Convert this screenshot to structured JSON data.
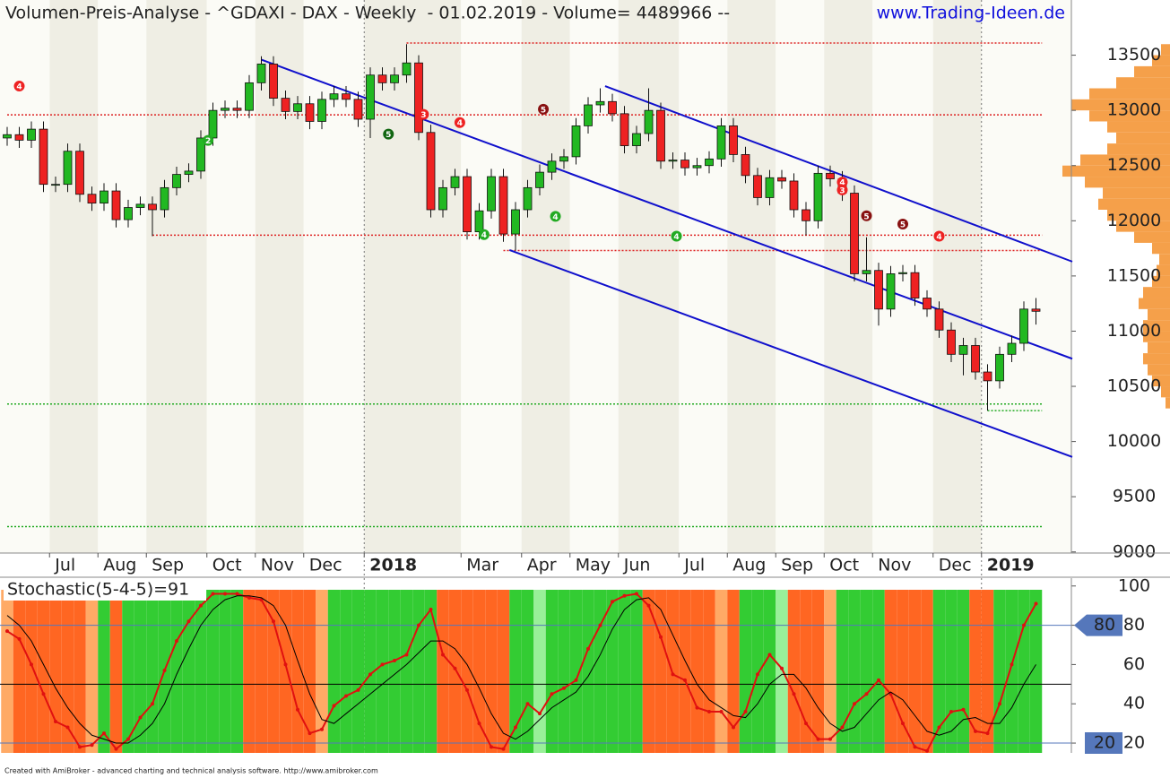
{
  "chart_data": [
    {
      "type": "candlestick",
      "title": "Volumen-Preis-Analyse - ^GDAXI - DAX - Weekly  - 01.02.2019 - Volume= 4489966 --",
      "subtitle": "www.Trading-Ideen.de",
      "open": [
        12750,
        12780,
        12730,
        12830,
        12330,
        12330,
        12630,
        12240,
        12160,
        12270,
        12010,
        12120,
        12150,
        12100,
        12300,
        12420,
        12450,
        12750,
        13000,
        13020,
        13000,
        13250,
        13420,
        13110,
        12990,
        13060,
        12900,
        13100,
        13150,
        13100,
        12920,
        13320,
        13250,
        13320,
        13430,
        12800,
        12100,
        12300,
        12400,
        11900,
        12090,
        12400,
        11880,
        12100,
        12300,
        12440,
        12540,
        12580,
        12860,
        13050,
        13080,
        12970,
        12680,
        12790,
        13000,
        12540,
        12550,
        12480,
        12500,
        12560,
        12860,
        12600,
        12410,
        12210,
        12390,
        12360,
        12100,
        12000,
        12430,
        12380,
        12250,
        11520,
        11550,
        11200,
        11520,
        11530,
        11300,
        11200,
        11010,
        10790,
        10870,
        10630,
        10550,
        10790,
        10890,
        11200
      ],
      "high": [
        12850,
        12850,
        12900,
        12900,
        12400,
        12700,
        12700,
        12310,
        12340,
        12340,
        12190,
        12220,
        12220,
        12370,
        12490,
        12520,
        12820,
        13070,
        13090,
        13090,
        13320,
        13490,
        13490,
        13180,
        13130,
        13130,
        13170,
        13220,
        13220,
        13170,
        13390,
        13390,
        13390,
        13600,
        13500,
        12870,
        12370,
        12470,
        12470,
        12160,
        12470,
        12470,
        12170,
        12370,
        12510,
        12610,
        12650,
        12930,
        13120,
        13200,
        13150,
        13040,
        12860,
        13200,
        13070,
        12620,
        12620,
        12570,
        12630,
        12930,
        12930,
        12670,
        12480,
        12460,
        12460,
        12430,
        12170,
        12500,
        12500,
        12450,
        12320,
        11850,
        11620,
        11590,
        11600,
        11600,
        11370,
        11270,
        11080,
        10940,
        10940,
        10700,
        10860,
        10960,
        11270,
        11300
      ],
      "low": [
        12680,
        12660,
        12660,
        12260,
        12260,
        12260,
        12170,
        12090,
        12090,
        11940,
        11940,
        12050,
        11860,
        12030,
        12230,
        12350,
        12380,
        12680,
        12930,
        12930,
        12930,
        13180,
        13040,
        12920,
        12920,
        12830,
        12830,
        13030,
        13030,
        12850,
        12750,
        13180,
        13180,
        13250,
        12730,
        12030,
        12030,
        12230,
        11830,
        11830,
        12020,
        11810,
        11730,
        12030,
        12230,
        12370,
        12470,
        12510,
        12790,
        12980,
        12900,
        12610,
        12610,
        12720,
        12470,
        12470,
        12410,
        12410,
        12430,
        12490,
        12530,
        12340,
        12140,
        12140,
        12290,
        12030,
        11870,
        11930,
        12310,
        12180,
        11450,
        11450,
        11050,
        11130,
        11450,
        11230,
        11130,
        10940,
        10720,
        10600,
        10560,
        10280,
        10480,
        10720,
        10820,
        11060
      ],
      "close": [
        12780,
        12730,
        12830,
        12330,
        12330,
        12630,
        12240,
        12160,
        12270,
        12010,
        12120,
        12150,
        12100,
        12300,
        12420,
        12450,
        12750,
        13000,
        13020,
        13000,
        13250,
        13420,
        13110,
        12990,
        13060,
        12900,
        13100,
        13150,
        13100,
        12920,
        13320,
        13250,
        13320,
        13430,
        12800,
        12100,
        12300,
        12400,
        11900,
        12090,
        12400,
        11880,
        12100,
        12300,
        12440,
        12540,
        12580,
        12860,
        13050,
        13080,
        12970,
        12680,
        12790,
        13000,
        12540,
        12550,
        12480,
        12500,
        12560,
        12860,
        12600,
        12410,
        12210,
        12390,
        12360,
        12100,
        12000,
        12430,
        12380,
        12250,
        11520,
        11550,
        11200,
        11520,
        11530,
        11300,
        11200,
        11010,
        10790,
        10870,
        10630,
        10550,
        10790,
        10890,
        11200,
        11180
      ],
      "up_color": "#22b822",
      "down_color": "#ee2222",
      "ylim": [
        8990,
        14000
      ],
      "yticks": [
        9000,
        9500,
        10000,
        10500,
        11000,
        11500,
        12000,
        12500,
        13000,
        13500
      ],
      "xlabels": [
        {
          "index": 4,
          "label": "Jul"
        },
        {
          "index": 8,
          "label": "Aug"
        },
        {
          "index": 12,
          "label": "Sep"
        },
        {
          "index": 17,
          "label": "Oct"
        },
        {
          "index": 21,
          "label": "Nov"
        },
        {
          "index": 25,
          "label": "Dec"
        },
        {
          "index": 30,
          "label": "2018"
        },
        {
          "index": 38,
          "label": "Mar"
        },
        {
          "index": 43,
          "label": "Apr"
        },
        {
          "index": 47,
          "label": "May"
        },
        {
          "index": 51,
          "label": "Jun"
        },
        {
          "index": 56,
          "label": "Jul"
        },
        {
          "index": 60,
          "label": "Aug"
        },
        {
          "index": 64,
          "label": "Sep"
        },
        {
          "index": 68,
          "label": "Oct"
        },
        {
          "index": 72,
          "label": "Nov"
        },
        {
          "index": 77,
          "label": "Dec"
        },
        {
          "index": 81,
          "label": "2019"
        }
      ],
      "levels": [
        {
          "value": 13610,
          "color": "#dd2222",
          "from": 33
        },
        {
          "value": 12960,
          "color": "#dd2222",
          "from": 0
        },
        {
          "value": 11870,
          "color": "#dd2222",
          "from": 12
        },
        {
          "value": 11730,
          "color": "#dd2222",
          "from": 41
        },
        {
          "value": 10340,
          "color": "#22aa22",
          "from": 0
        },
        {
          "value": 10280,
          "color": "#22aa22",
          "from": 81
        },
        {
          "value": 9230,
          "color": "#22aa22",
          "from": 0
        }
      ],
      "trendlines": [
        {
          "from": [
            21,
            13460
          ],
          "to": [
            88,
            10750
          ]
        },
        {
          "from": [
            41.5,
            11735
          ],
          "to": [
            88,
            9860
          ]
        },
        {
          "from": [
            49.4,
            13220
          ],
          "to": [
            88,
            11630
          ]
        }
      ],
      "trend_color": "#1010cc",
      "signals": [
        {
          "index": 1,
          "price": 13220,
          "label": "4",
          "color": "#ee2222"
        },
        {
          "index": 16.6,
          "price": 12728,
          "label": "2",
          "color": "#22aa22"
        },
        {
          "index": 31.5,
          "price": 12785,
          "label": "5",
          "color": "#116611"
        },
        {
          "index": 34.4,
          "price": 12964,
          "label": "3",
          "color": "#ee2222"
        },
        {
          "index": 37.4,
          "price": 12890,
          "label": "4",
          "color": "#ee2222"
        },
        {
          "index": 39.4,
          "price": 11875,
          "label": "4",
          "color": "#22aa22"
        },
        {
          "index": 44.3,
          "price": 13010,
          "label": "5",
          "color": "#881111"
        },
        {
          "index": 45.3,
          "price": 12040,
          "label": "4",
          "color": "#22aa22"
        },
        {
          "index": 55.3,
          "price": 11860,
          "label": "4",
          "color": "#22aa22"
        },
        {
          "index": 69,
          "price": 12350,
          "label": "4",
          "color": "#ee2222"
        },
        {
          "index": 69,
          "price": 12280,
          "label": "3",
          "color": "#ee2222"
        },
        {
          "index": 71,
          "price": 12045,
          "label": "5",
          "color": "#881111"
        },
        {
          "index": 74,
          "price": 11970,
          "label": "5",
          "color": "#881111"
        },
        {
          "index": 77,
          "price": 11860,
          "label": "4",
          "color": "#ee2222"
        }
      ],
      "profile_bins": [
        10300,
        10400,
        10500,
        10600,
        10700,
        10800,
        10900,
        11000,
        11100,
        11200,
        11300,
        11400,
        11500,
        11600,
        11700,
        11800,
        11900,
        12000,
        12100,
        12200,
        12300,
        12400,
        12500,
        12600,
        12700,
        12800,
        12900,
        13000,
        13100,
        13200,
        13300,
        13400,
        13500
      ],
      "profile_values": [
        5,
        10,
        20,
        25,
        30,
        25,
        30,
        30,
        25,
        35,
        30,
        20,
        15,
        12,
        20,
        40,
        60,
        70,
        80,
        75,
        95,
        120,
        100,
        70,
        60,
        70,
        90,
        110,
        90,
        60,
        40,
        20,
        10
      ],
      "profile_color": "#f5a04a"
    },
    {
      "type": "line",
      "title": "Stochastic(5-4-5)=91",
      "series": [
        {
          "color": "#e01010",
          "values": [
            77,
            73,
            60,
            45,
            31,
            28,
            18,
            19,
            25,
            17,
            22,
            33,
            40,
            57,
            72,
            82,
            90,
            96,
            96,
            96,
            94,
            93,
            82,
            60,
            37,
            25,
            27,
            39,
            44,
            47,
            55,
            60,
            62,
            65,
            80,
            88,
            65,
            58,
            47,
            30,
            18,
            17,
            28,
            40,
            35,
            45,
            48,
            52,
            68,
            80,
            92,
            95,
            96,
            90,
            74,
            55,
            52,
            38,
            36,
            36,
            28,
            36,
            55,
            65,
            58,
            45,
            30,
            22,
            22,
            28,
            40,
            45,
            52,
            45,
            30,
            18,
            16,
            28,
            36,
            37,
            26,
            25,
            40,
            60,
            80,
            91
          ]
        },
        {
          "color": "#000000",
          "values": [
            85,
            80,
            72,
            60,
            48,
            38,
            30,
            24,
            22,
            20,
            20,
            24,
            30,
            40,
            55,
            68,
            80,
            88,
            93,
            95,
            95,
            94,
            90,
            80,
            62,
            45,
            32,
            30,
            35,
            40,
            45,
            50,
            55,
            60,
            66,
            72,
            72,
            68,
            60,
            48,
            35,
            25,
            22,
            26,
            32,
            38,
            42,
            46,
            54,
            65,
            78,
            88,
            93,
            94,
            88,
            75,
            62,
            50,
            42,
            38,
            34,
            33,
            40,
            50,
            55,
            55,
            48,
            38,
            30,
            26,
            28,
            35,
            42,
            46,
            42,
            34,
            26,
            24,
            26,
            32,
            33,
            30,
            30,
            38,
            50,
            60
          ]
        }
      ],
      "zone_colors": [
        "#33cc33",
        "#99f099",
        "#ff6622",
        "#ffaa66"
      ],
      "ylim": [
        15,
        104
      ],
      "yticks": [
        20,
        40,
        60,
        80,
        100
      ],
      "band": [
        20,
        80
      ],
      "band_color": "#5577bb",
      "midline": 50
    }
  ],
  "footer": "Created with AmiBroker - advanced charting and technical analysis software. http://www.amibroker.com"
}
